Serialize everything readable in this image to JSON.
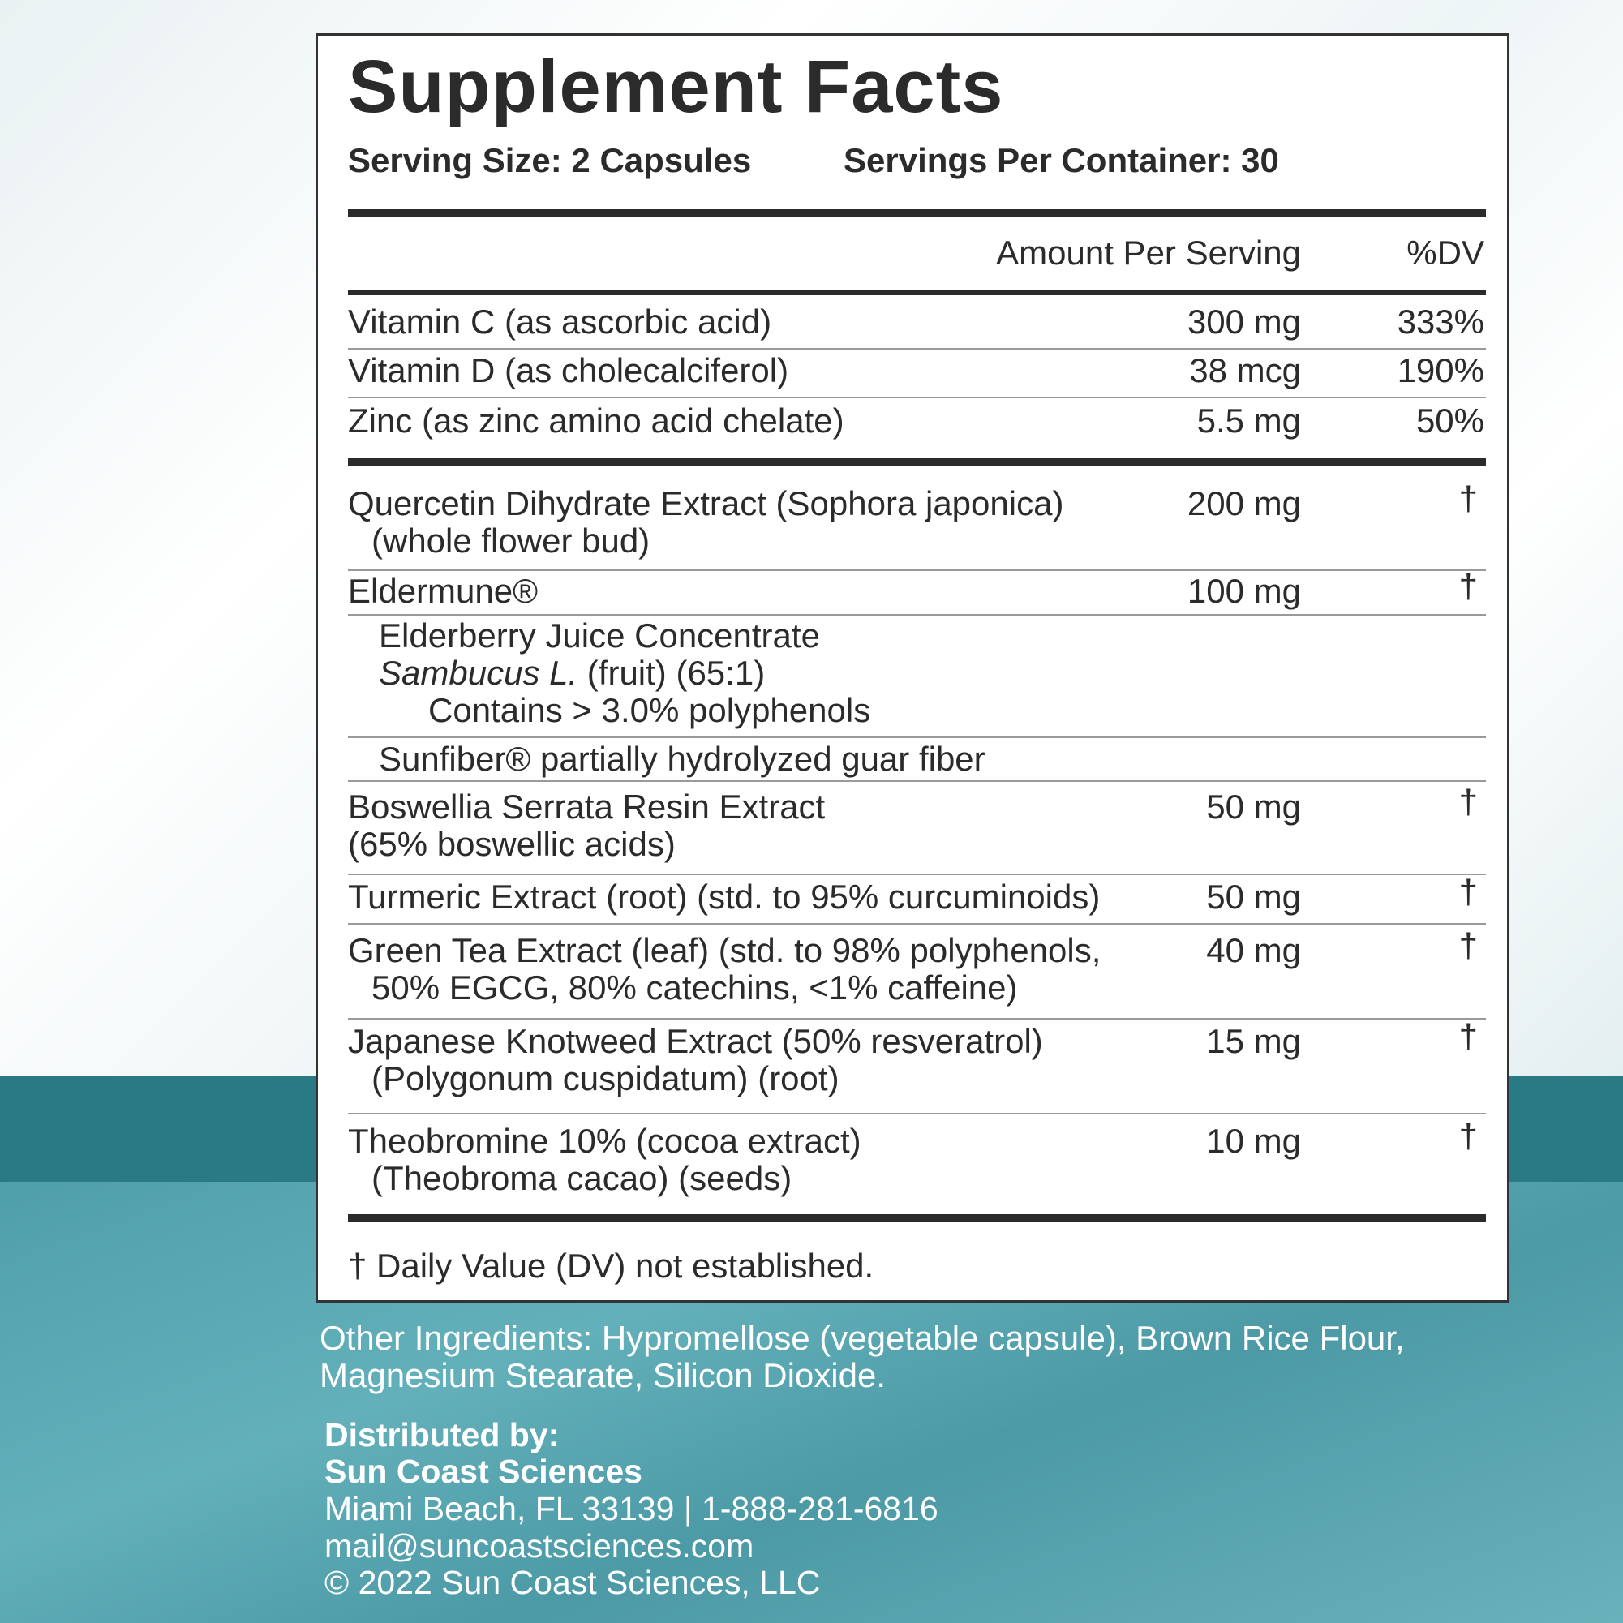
{
  "header": {
    "title": "Supplement Facts",
    "serving_size": "Serving Size: 2 Capsules",
    "servings_per_container": "Servings Per Container: 30"
  },
  "columns": {
    "amount": "Amount Per Serving",
    "dv": "%DV"
  },
  "vitamins": [
    {
      "name": "Vitamin C (as ascorbic acid)",
      "amount": "300 mg",
      "dv": "333%"
    },
    {
      "name": "Vitamin D (as cholecalciferol)",
      "amount": "38 mcg",
      "dv": "190%"
    },
    {
      "name": "Zinc (as zinc amino acid chelate)",
      "amount": "5.5 mg",
      "dv": "50%"
    }
  ],
  "ingredients": [
    {
      "lines": [
        "Quercetin Dihydrate Extract (Sophora japonica)",
        "(whole flower bud)"
      ],
      "amount": "200 mg",
      "dv": "†"
    },
    {
      "lines": [
        "Eldermune®"
      ],
      "amount": "100 mg",
      "dv": "†"
    },
    {
      "lines": [
        "Elderberry Juice Concentrate",
        {
          "italic": "Sambucus L.",
          "text": " (fruit) (65:1)"
        },
        "Contains > 3.0% polyphenols"
      ]
    },
    {
      "lines": [
        "Sunfiber® partially hydrolyzed guar fiber"
      ]
    },
    {
      "lines": [
        "Boswellia Serrata Resin Extract",
        "(65% boswellic acids)"
      ],
      "amount": "50 mg",
      "dv": "†"
    },
    {
      "lines": [
        "Turmeric Extract (root) (std. to 95% curcuminoids)"
      ],
      "amount": "50 mg",
      "dv": "†"
    },
    {
      "lines": [
        "Green Tea Extract (leaf) (std. to 98% polyphenols,",
        "50% EGCG, 80% catechins, <1% caffeine)"
      ],
      "amount": "40 mg",
      "dv": "†"
    },
    {
      "lines": [
        "Japanese Knotweed Extract (50% resveratrol)",
        "(Polygonum cuspidatum) (root)"
      ],
      "amount": "15 mg",
      "dv": "†"
    },
    {
      "lines": [
        "Theobromine 10% (cocoa extract)",
        "(Theobroma cacao) (seeds)"
      ],
      "amount": "10 mg",
      "dv": "†"
    }
  ],
  "footnote": "† Daily Value (DV) not established.",
  "other_ingredients": [
    "Other Ingredients: Hypromellose (vegetable capsule), Brown Rice Flour,",
    "Magnesium Stearate, Silicon Dioxide."
  ],
  "distributor": {
    "label": "Distributed by:",
    "company": "Sun Coast Sciences",
    "address": "Miami Beach, FL 33139  |  1-888-281-6816",
    "email": "mail@suncoastsciences.com",
    "copyright": "© 2022 Sun Coast Sciences, LLC"
  }
}
